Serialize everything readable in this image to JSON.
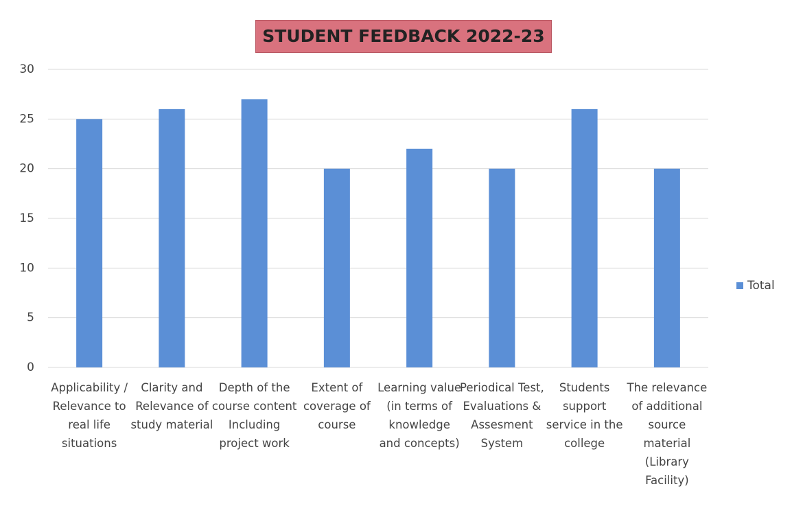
{
  "chart_data": {
    "type": "bar",
    "title": "STUDENT FEEDBACK 2022-23",
    "categories": [
      "Applicability / Relevance to real life situations",
      "Clarity and Relevance of study material",
      "Depth of the course content Including project work",
      "Extent of coverage of course",
      "Learning value (in terms of knowledge and concepts)",
      "Periodical Test, Evaluations & Assesment System",
      "Students support service in the college",
      "The relevance of additional source material (Library Facility)"
    ],
    "series": [
      {
        "name": "Total",
        "color": "#5b8fd6",
        "values": [
          25,
          26,
          27,
          20,
          22,
          20,
          26,
          20
        ]
      }
    ],
    "ylim": [
      0,
      30
    ],
    "yticks": [
      0,
      5,
      10,
      15,
      20,
      25,
      30
    ],
    "grid": true,
    "legend": "right"
  }
}
